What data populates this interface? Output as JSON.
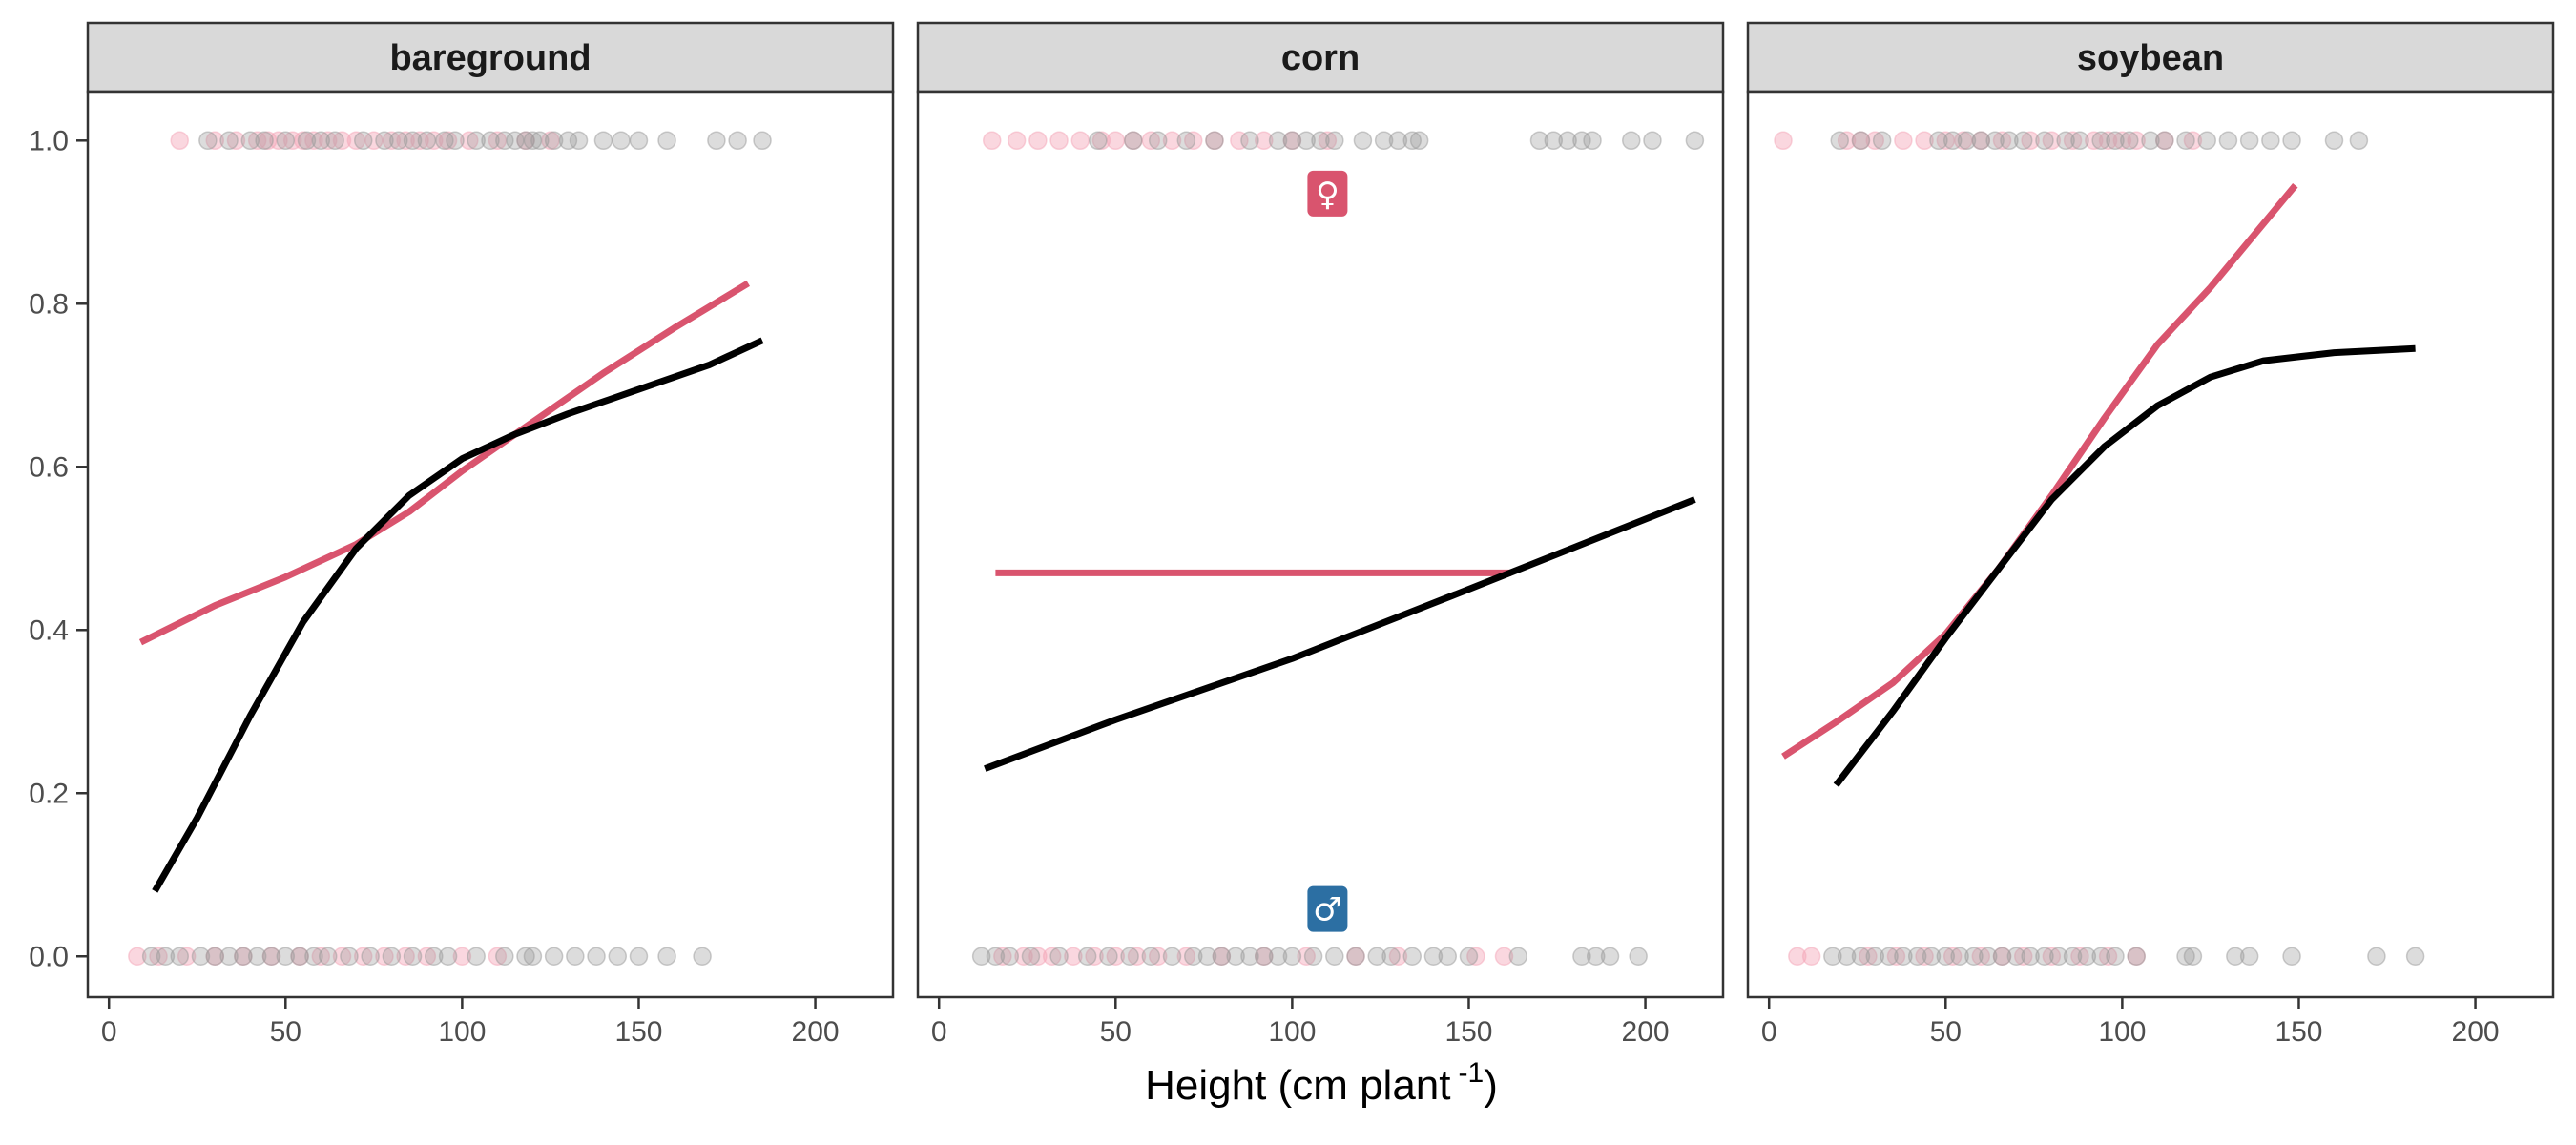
{
  "chart_data": {
    "type": "scatter",
    "xlabel": "Height (cm plant",
    "xlabel_sup": "-1",
    "xlabel_close": ")",
    "xlim": [
      -6,
      222
    ],
    "ylim": [
      -0.05,
      1.06
    ],
    "xticks": [
      0,
      50,
      100,
      150,
      200
    ],
    "yticks": [
      0.0,
      0.2,
      0.4,
      0.6,
      0.8,
      1.0
    ],
    "ytick_labels": [
      "0.0",
      "0.2",
      "0.4",
      "0.6",
      "0.8",
      "1.0"
    ],
    "colors": {
      "female": "#d9546e",
      "male": "#000000",
      "female_points": "#f4a6b8",
      "male_points": "#9a9a9a",
      "strip": "#d9d9d9",
      "female_badge": "#d9546e",
      "male_badge": "#2c6fa3"
    },
    "legend": {
      "female_symbol": "♀",
      "male_symbol": "♂"
    },
    "panels": [
      {
        "name": "bareground",
        "female_points_1": [
          20,
          30,
          36,
          42,
          45,
          48,
          52,
          55,
          58,
          62,
          66,
          70,
          75,
          80,
          84,
          88,
          92,
          96,
          102,
          110,
          118,
          125
        ],
        "male_points_1": [
          28,
          34,
          40,
          44,
          50,
          56,
          60,
          64,
          72,
          78,
          82,
          86,
          90,
          95,
          98,
          104,
          108,
          112,
          115,
          118,
          120,
          122,
          126,
          130,
          133,
          140,
          145,
          150,
          158,
          172,
          178,
          185
        ],
        "female_points_0": [
          8,
          14,
          22,
          30,
          38,
          46,
          54,
          60,
          66,
          72,
          78,
          84,
          90,
          100,
          110
        ],
        "male_points_0": [
          12,
          16,
          20,
          26,
          30,
          34,
          38,
          42,
          46,
          50,
          54,
          58,
          62,
          68,
          74,
          80,
          86,
          92,
          96,
          104,
          112,
          118,
          120,
          126,
          132,
          138,
          144,
          150,
          158,
          168
        ],
        "series": [
          {
            "name": "female",
            "x": [
              9,
              30,
              50,
              70,
              85,
              100,
              120,
              140,
              160,
              181
            ],
            "y": [
              0.385,
              0.43,
              0.465,
              0.505,
              0.545,
              0.595,
              0.655,
              0.715,
              0.77,
              0.825
            ]
          },
          {
            "name": "male",
            "x": [
              13,
              25,
              40,
              55,
              70,
              85,
              100,
              115,
              130,
              150,
              170,
              185
            ],
            "y": [
              0.08,
              0.17,
              0.295,
              0.41,
              0.5,
              0.565,
              0.61,
              0.64,
              0.665,
              0.695,
              0.725,
              0.755
            ]
          }
        ]
      },
      {
        "name": "corn",
        "female_points_1": [
          15,
          22,
          28,
          34,
          40,
          46,
          50,
          55,
          60,
          66,
          72,
          78,
          85,
          92,
          100,
          110
        ],
        "male_points_1": [
          45,
          55,
          62,
          70,
          78,
          88,
          96,
          100,
          104,
          108,
          112,
          120,
          126,
          130,
          134,
          136,
          170,
          174,
          178,
          182,
          185,
          196,
          202,
          214
        ],
        "female_points_0": [
          18,
          24,
          28,
          32,
          38,
          44,
          50,
          56,
          62,
          70,
          80,
          92,
          104,
          118,
          130,
          152,
          160
        ],
        "male_points_0": [
          12,
          16,
          20,
          26,
          34,
          42,
          48,
          54,
          60,
          66,
          72,
          76,
          80,
          84,
          88,
          92,
          96,
          100,
          106,
          112,
          118,
          124,
          128,
          134,
          140,
          144,
          150,
          164,
          182,
          186,
          190,
          198
        ],
        "series": [
          {
            "name": "female",
            "x": [
              16,
              162
            ],
            "y": [
              0.47,
              0.47
            ]
          },
          {
            "name": "male",
            "x": [
              13,
              50,
              100,
              150,
              214
            ],
            "y": [
              0.23,
              0.29,
              0.365,
              0.45,
              0.56
            ]
          }
        ]
      },
      {
        "name": "soybean",
        "female_points_1": [
          4,
          22,
          26,
          30,
          38,
          44,
          50,
          55,
          60,
          66,
          74,
          80,
          86,
          92,
          96,
          100,
          104,
          112,
          120
        ],
        "male_points_1": [
          20,
          26,
          32,
          48,
          52,
          56,
          60,
          64,
          68,
          72,
          78,
          84,
          88,
          94,
          98,
          102,
          108,
          112,
          118,
          124,
          130,
          136,
          142,
          148,
          160,
          167
        ],
        "female_points_0": [
          8,
          12,
          28,
          36,
          44,
          52,
          60,
          66,
          72,
          80,
          88,
          96,
          104
        ],
        "male_points_0": [
          18,
          22,
          26,
          30,
          34,
          38,
          42,
          46,
          50,
          54,
          58,
          62,
          66,
          70,
          74,
          78,
          82,
          86,
          90,
          94,
          98,
          104,
          118,
          120,
          132,
          136,
          148,
          172,
          183
        ],
        "series": [
          {
            "name": "female",
            "x": [
              4,
              20,
              35,
              50,
              65,
              80,
              95,
              110,
              125,
              149
            ],
            "y": [
              0.245,
              0.29,
              0.335,
              0.395,
              0.475,
              0.565,
              0.66,
              0.75,
              0.82,
              0.945
            ]
          },
          {
            "name": "male",
            "x": [
              19,
              35,
              50,
              65,
              80,
              95,
              110,
              125,
              140,
              160,
              183
            ],
            "y": [
              0.21,
              0.3,
              0.39,
              0.475,
              0.56,
              0.625,
              0.675,
              0.71,
              0.73,
              0.74,
              0.745
            ]
          }
        ]
      }
    ]
  }
}
